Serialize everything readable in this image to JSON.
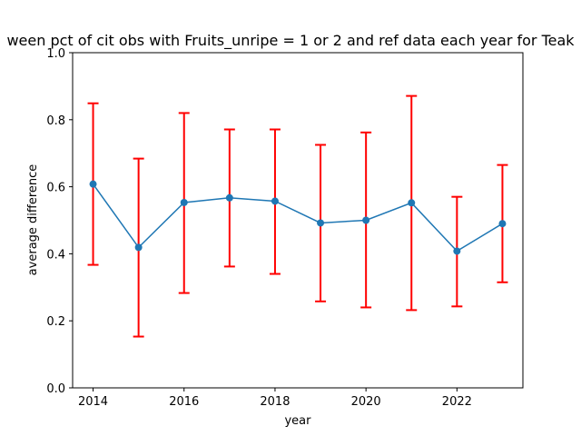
{
  "chart_data": {
    "type": "line",
    "title": "ween pct of cit obs with Fruits_unripe = 1 or 2 and ref data each year for Teak",
    "xlabel": "year",
    "ylabel": "average difference",
    "xlim": [
      2013.55,
      2023.45
    ],
    "ylim": [
      0.0,
      1.0
    ],
    "x_ticks": [
      2014,
      2016,
      2018,
      2020,
      2022
    ],
    "x_tick_labels": [
      "2014",
      "2016",
      "2018",
      "2020",
      "2022"
    ],
    "y_ticks": [
      0.0,
      0.2,
      0.4,
      0.6,
      0.8,
      1.0
    ],
    "y_tick_labels": [
      "0.0",
      "0.2",
      "0.4",
      "0.6",
      "0.8",
      "1.0"
    ],
    "grid": false,
    "series": [
      {
        "x": [
          2014,
          2015,
          2016,
          2017,
          2018,
          2019,
          2020,
          2021,
          2022,
          2023
        ],
        "values": [
          0.608,
          0.419,
          0.553,
          0.567,
          0.557,
          0.492,
          0.5,
          0.552,
          0.408,
          0.49
        ],
        "err_low": [
          0.367,
          0.153,
          0.283,
          0.362,
          0.34,
          0.258,
          0.24,
          0.232,
          0.243,
          0.315
        ],
        "err_high": [
          0.849,
          0.684,
          0.82,
          0.771,
          0.771,
          0.725,
          0.762,
          0.871,
          0.57,
          0.665
        ],
        "line_color": "#1f77b4",
        "marker_color": "#1f77b4",
        "error_color": "#ff0000"
      }
    ]
  }
}
